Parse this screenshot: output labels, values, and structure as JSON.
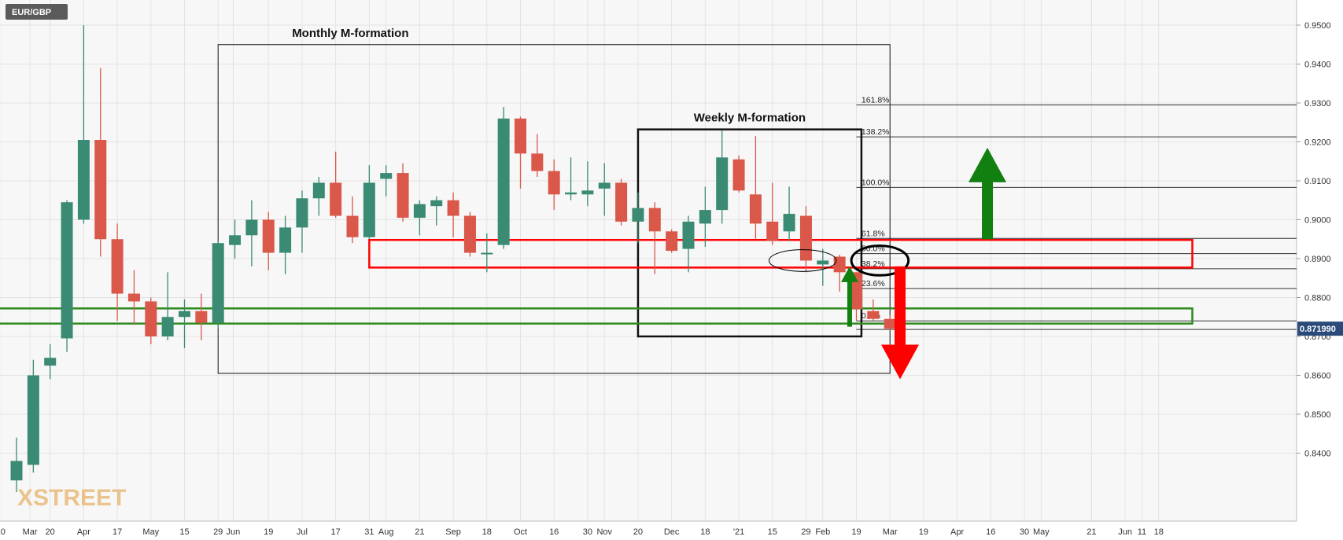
{
  "symbol": "EUR/GBP",
  "watermark": "XSTREET",
  "colors": {
    "up": "#3a8a74",
    "down": "#d9584a",
    "background": "#f7f7f7",
    "grid": "#e3e3e3",
    "resistance_zone": "#ff0000",
    "support_zone": "#2e8b1e",
    "arrow_up": "#118011",
    "arrow_down": "#ff0000",
    "price_label_bg": "#2a4a7a"
  },
  "icons": [
    "arrow-up-icon",
    "arrow-down-icon"
  ],
  "chart_data": {
    "type": "candlestick",
    "timeframe": "weekly",
    "y_axis_ticks": [
      "0.8400",
      "0.8500",
      "0.8600",
      "0.8700",
      "0.8800",
      "0.8900",
      "0.9000",
      "0.9100",
      "0.9200",
      "0.9300",
      "0.9400",
      "0.9500"
    ],
    "x_axis_ticks": [
      {
        "label": "'20",
        "index": -1
      },
      {
        "label": "Mar",
        "index": 0.8
      },
      {
        "label": "20",
        "index": 2
      },
      {
        "label": "Apr",
        "index": 4
      },
      {
        "label": "17",
        "index": 6
      },
      {
        "label": "May",
        "index": 8
      },
      {
        "label": "15",
        "index": 10
      },
      {
        "label": "29",
        "index": 12
      },
      {
        "label": "Jun",
        "index": 12.9
      },
      {
        "label": "19",
        "index": 15
      },
      {
        "label": "Jul",
        "index": 17
      },
      {
        "label": "17",
        "index": 19
      },
      {
        "label": "31",
        "index": 21
      },
      {
        "label": "Aug",
        "index": 22
      },
      {
        "label": "21",
        "index": 24
      },
      {
        "label": "Sep",
        "index": 26
      },
      {
        "label": "18",
        "index": 28
      },
      {
        "label": "Oct",
        "index": 30
      },
      {
        "label": "16",
        "index": 32
      },
      {
        "label": "30",
        "index": 34
      },
      {
        "label": "Nov",
        "index": 35
      },
      {
        "label": "20",
        "index": 37
      },
      {
        "label": "Dec",
        "index": 39
      },
      {
        "label": "18",
        "index": 41
      },
      {
        "label": "'21",
        "index": 43
      },
      {
        "label": "15",
        "index": 45
      },
      {
        "label": "29",
        "index": 47
      },
      {
        "label": "Feb",
        "index": 48
      },
      {
        "label": "19",
        "index": 50
      },
      {
        "label": "Mar",
        "index": 52
      },
      {
        "label": "19",
        "index": 54
      },
      {
        "label": "Apr",
        "index": 56
      },
      {
        "label": "16",
        "index": 58
      },
      {
        "label": "30",
        "index": 60
      },
      {
        "label": "May",
        "index": 61
      },
      {
        "label": "21",
        "index": 64
      },
      {
        "label": "Jun",
        "index": 66
      },
      {
        "label": "11",
        "index": 67
      },
      {
        "label": "18",
        "index": 68
      }
    ],
    "candles": [
      {
        "o": 0.833,
        "h": 0.844,
        "l": 0.83,
        "c": 0.838
      },
      {
        "o": 0.837,
        "h": 0.864,
        "l": 0.835,
        "c": 0.86
      },
      {
        "o": 0.8625,
        "h": 0.868,
        "l": 0.859,
        "c": 0.8645
      },
      {
        "o": 0.8695,
        "h": 0.905,
        "l": 0.866,
        "c": 0.9045
      },
      {
        "o": 0.9,
        "h": 0.95,
        "l": 0.899,
        "c": 0.9205
      },
      {
        "o": 0.9205,
        "h": 0.939,
        "l": 0.8905,
        "c": 0.895
      },
      {
        "o": 0.895,
        "h": 0.899,
        "l": 0.874,
        "c": 0.881
      },
      {
        "o": 0.881,
        "h": 0.887,
        "l": 0.873,
        "c": 0.879
      },
      {
        "o": 0.879,
        "h": 0.88,
        "l": 0.868,
        "c": 0.87
      },
      {
        "o": 0.87,
        "h": 0.8865,
        "l": 0.869,
        "c": 0.875
      },
      {
        "o": 0.875,
        "h": 0.8795,
        "l": 0.867,
        "c": 0.8765
      },
      {
        "o": 0.8765,
        "h": 0.881,
        "l": 0.869,
        "c": 0.8735
      },
      {
        "o": 0.8735,
        "h": 0.8945,
        "l": 0.872,
        "c": 0.894
      },
      {
        "o": 0.8935,
        "h": 0.9,
        "l": 0.89,
        "c": 0.896
      },
      {
        "o": 0.896,
        "h": 0.905,
        "l": 0.888,
        "c": 0.9
      },
      {
        "o": 0.9,
        "h": 0.902,
        "l": 0.887,
        "c": 0.8915
      },
      {
        "o": 0.8915,
        "h": 0.901,
        "l": 0.886,
        "c": 0.898
      },
      {
        "o": 0.898,
        "h": 0.9075,
        "l": 0.8915,
        "c": 0.9055
      },
      {
        "o": 0.9055,
        "h": 0.911,
        "l": 0.901,
        "c": 0.9095
      },
      {
        "o": 0.9095,
        "h": 0.9175,
        "l": 0.9005,
        "c": 0.901
      },
      {
        "o": 0.901,
        "h": 0.906,
        "l": 0.894,
        "c": 0.8955
      },
      {
        "o": 0.8955,
        "h": 0.914,
        "l": 0.895,
        "c": 0.9095
      },
      {
        "o": 0.9105,
        "h": 0.914,
        "l": 0.906,
        "c": 0.912
      },
      {
        "o": 0.912,
        "h": 0.9145,
        "l": 0.8995,
        "c": 0.9005
      },
      {
        "o": 0.9005,
        "h": 0.905,
        "l": 0.896,
        "c": 0.904
      },
      {
        "o": 0.9035,
        "h": 0.906,
        "l": 0.8985,
        "c": 0.905
      },
      {
        "o": 0.905,
        "h": 0.907,
        "l": 0.8955,
        "c": 0.901
      },
      {
        "o": 0.901,
        "h": 0.902,
        "l": 0.8905,
        "c": 0.8915
      },
      {
        "o": 0.8915,
        "h": 0.8965,
        "l": 0.8865,
        "c": 0.8915
      },
      {
        "o": 0.8935,
        "h": 0.929,
        "l": 0.8925,
        "c": 0.926
      },
      {
        "o": 0.926,
        "h": 0.9265,
        "l": 0.908,
        "c": 0.917
      },
      {
        "o": 0.917,
        "h": 0.922,
        "l": 0.911,
        "c": 0.9125
      },
      {
        "o": 0.9125,
        "h": 0.9155,
        "l": 0.9025,
        "c": 0.9065
      },
      {
        "o": 0.9065,
        "h": 0.916,
        "l": 0.905,
        "c": 0.907
      },
      {
        "o": 0.9065,
        "h": 0.915,
        "l": 0.9035,
        "c": 0.9075
      },
      {
        "o": 0.908,
        "h": 0.9145,
        "l": 0.901,
        "c": 0.9095
      },
      {
        "o": 0.9095,
        "h": 0.9105,
        "l": 0.8985,
        "c": 0.8995
      },
      {
        "o": 0.8995,
        "h": 0.907,
        "l": 0.894,
        "c": 0.903
      },
      {
        "o": 0.903,
        "h": 0.9045,
        "l": 0.886,
        "c": 0.897
      },
      {
        "o": 0.897,
        "h": 0.8975,
        "l": 0.8915,
        "c": 0.892
      },
      {
        "o": 0.8925,
        "h": 0.901,
        "l": 0.8865,
        "c": 0.8995
      },
      {
        "o": 0.899,
        "h": 0.9085,
        "l": 0.893,
        "c": 0.9025
      },
      {
        "o": 0.9025,
        "h": 0.923,
        "l": 0.899,
        "c": 0.916
      },
      {
        "o": 0.9155,
        "h": 0.9165,
        "l": 0.907,
        "c": 0.9075
      },
      {
        "o": 0.9065,
        "h": 0.9215,
        "l": 0.895,
        "c": 0.899
      },
      {
        "o": 0.8995,
        "h": 0.9095,
        "l": 0.8935,
        "c": 0.8945
      },
      {
        "o": 0.897,
        "h": 0.9085,
        "l": 0.8945,
        "c": 0.9015
      },
      {
        "o": 0.901,
        "h": 0.9035,
        "l": 0.8865,
        "c": 0.8895
      },
      {
        "o": 0.8885,
        "h": 0.8925,
        "l": 0.883,
        "c": 0.8895
      },
      {
        "o": 0.8905,
        "h": 0.891,
        "l": 0.8815,
        "c": 0.8865
      },
      {
        "o": 0.8865,
        "h": 0.8865,
        "l": 0.874,
        "c": 0.877
      },
      {
        "o": 0.8765,
        "h": 0.8795,
        "l": 0.874,
        "c": 0.8745
      },
      {
        "o": 0.8745,
        "h": 0.8755,
        "l": 0.8715,
        "c": 0.872
      }
    ],
    "current_price": "0.871990",
    "fibonacci": [
      {
        "label": "161.8%",
        "price": 0.9295
      },
      {
        "label": "138.2%",
        "price": 0.9213
      },
      {
        "label": "100.0%",
        "price": 0.9083
      },
      {
        "label": "61.8%",
        "price": 0.8952
      },
      {
        "label": "50.0%",
        "price": 0.8913
      },
      {
        "label": "38.2%",
        "price": 0.8874
      },
      {
        "label": "23.6%",
        "price": 0.8823
      },
      {
        "label": "0.0%",
        "price": 0.874
      },
      {
        "label": "",
        "price": 0.8718
      }
    ],
    "annotations": [
      {
        "text": "Monthly M-formation",
        "box": {
          "i1": 12,
          "i2": 52,
          "p1": 0.945,
          "p2": 0.8605
        }
      },
      {
        "text": "Weekly M-formation",
        "box": {
          "i1": 37,
          "i2": 50.3,
          "p1": 0.9232,
          "p2": 0.87
        }
      }
    ],
    "zones": [
      {
        "kind": "resistance",
        "i1": 21,
        "i2": 70,
        "p1": 0.8948,
        "p2": 0.8877
      },
      {
        "kind": "support",
        "i1": -1.2,
        "i2": 70,
        "p1": 0.8772,
        "p2": 0.8733
      }
    ],
    "ellipses": [
      {
        "kind": "thin",
        "ci": 46.8,
        "cp": 0.8895,
        "ri": 2.0,
        "rp": 0.0028
      },
      {
        "kind": "bold",
        "ci": 51.4,
        "cp": 0.8895,
        "ri": 1.7,
        "rp": 0.0038
      }
    ],
    "arrows": [
      {
        "dir": "up",
        "color": "green",
        "i": 49.6,
        "from": 0.8725,
        "to": 0.888,
        "size": "small"
      },
      {
        "dir": "down",
        "color": "red",
        "i": 52.6,
        "from": 0.888,
        "to": 0.859,
        "size": "large"
      },
      {
        "dir": "up",
        "color": "green",
        "i": 57.8,
        "from": 0.895,
        "to": 0.9185,
        "size": "large"
      }
    ]
  }
}
